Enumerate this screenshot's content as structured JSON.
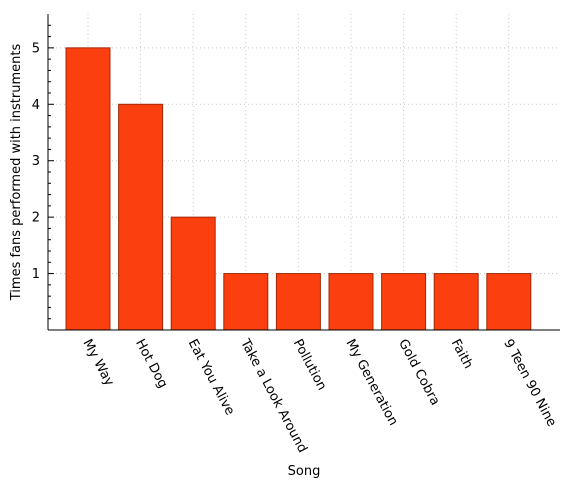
{
  "chart_data": {
    "type": "bar",
    "title": "",
    "xlabel": "Song",
    "ylabel": "Times fans performed with instruments",
    "categories": [
      "My Way",
      "Hot Dog",
      "Eat You Alive",
      "Take a Look Around",
      "Pollution",
      "My Generation",
      "Gold Cobra",
      "Faith",
      "9 Teen 90 Nine"
    ],
    "values": [
      5,
      4,
      2,
      1,
      1,
      1,
      1,
      1,
      1
    ],
    "ylim": [
      0,
      5.6
    ],
    "yticks": [
      1,
      2,
      3,
      4,
      5
    ],
    "grid": true,
    "legend": "none",
    "bar_color": "#fc3f0f",
    "bar_edge_color": "#a02808",
    "grid_color": "#c8c8c8"
  }
}
